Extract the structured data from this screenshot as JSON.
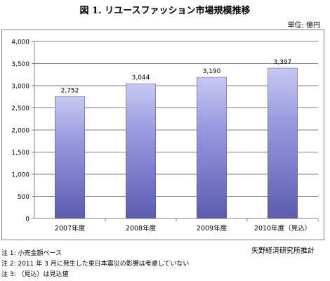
{
  "title": "図 1. リユースファッション市場規模推移",
  "unit": "単位: 億円",
  "source": "矢野経済研究所推計",
  "notes": [
    "注 1: 小売金額ベース",
    "注 2: 2011 年 3 月に発生した東日本震災の影響は考慮していない",
    "注 3: （見込）は見込値"
  ],
  "colors": {
    "bar_top": "#c8c8f2",
    "bar_mid": "#9a9ae0",
    "bar_bottom": "#5c5cb0",
    "axis": "#7f7f7f",
    "grid": "#000000"
  },
  "chart_data": {
    "type": "bar",
    "title": "図 1. リユースファッション市場規模推移",
    "ylabel": "単位: 億円",
    "xlabel": "",
    "categories": [
      "2007年度",
      "2008年度",
      "2009年度",
      "2010年度（見込）"
    ],
    "values": [
      2752,
      3044,
      3190,
      3397
    ],
    "value_labels": [
      "2,752",
      "3,044",
      "3,190",
      "3,397"
    ],
    "ylim": [
      0,
      4000
    ],
    "yticks": [
      0,
      500,
      1000,
      1500,
      2000,
      2500,
      3000,
      3500,
      4000
    ],
    "ytick_labels": [
      "0",
      "500",
      "1,000",
      "1,500",
      "2,000",
      "2,500",
      "3,000",
      "3,500",
      "4,000"
    ],
    "grid": true,
    "legend": "none"
  }
}
